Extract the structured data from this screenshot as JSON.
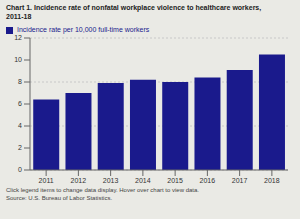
{
  "chart_data": {
    "type": "bar",
    "title": "Chart 1. Incidence rate of nonfatal workplace violence to healthcare workers,\n2011-18",
    "categories": [
      "2011",
      "2012",
      "2013",
      "2014",
      "2015",
      "2016",
      "2017",
      "2018"
    ],
    "series": [
      {
        "name": "Incidence rate per 10,000 full-time workers",
        "color": "#1a1a8c",
        "values": [
          6.4,
          7.0,
          7.9,
          8.2,
          8.0,
          8.4,
          9.1,
          10.5
        ]
      }
    ],
    "ylim": [
      0,
      12
    ],
    "yticks": [
      0,
      2,
      4,
      6,
      8,
      10,
      12
    ],
    "grid": true,
    "legend": "upper left",
    "annotations": [
      "Click legend items to change data display. Hover over chart to view data.",
      "Source: U.S. Bureau of Labor Statistics."
    ]
  }
}
